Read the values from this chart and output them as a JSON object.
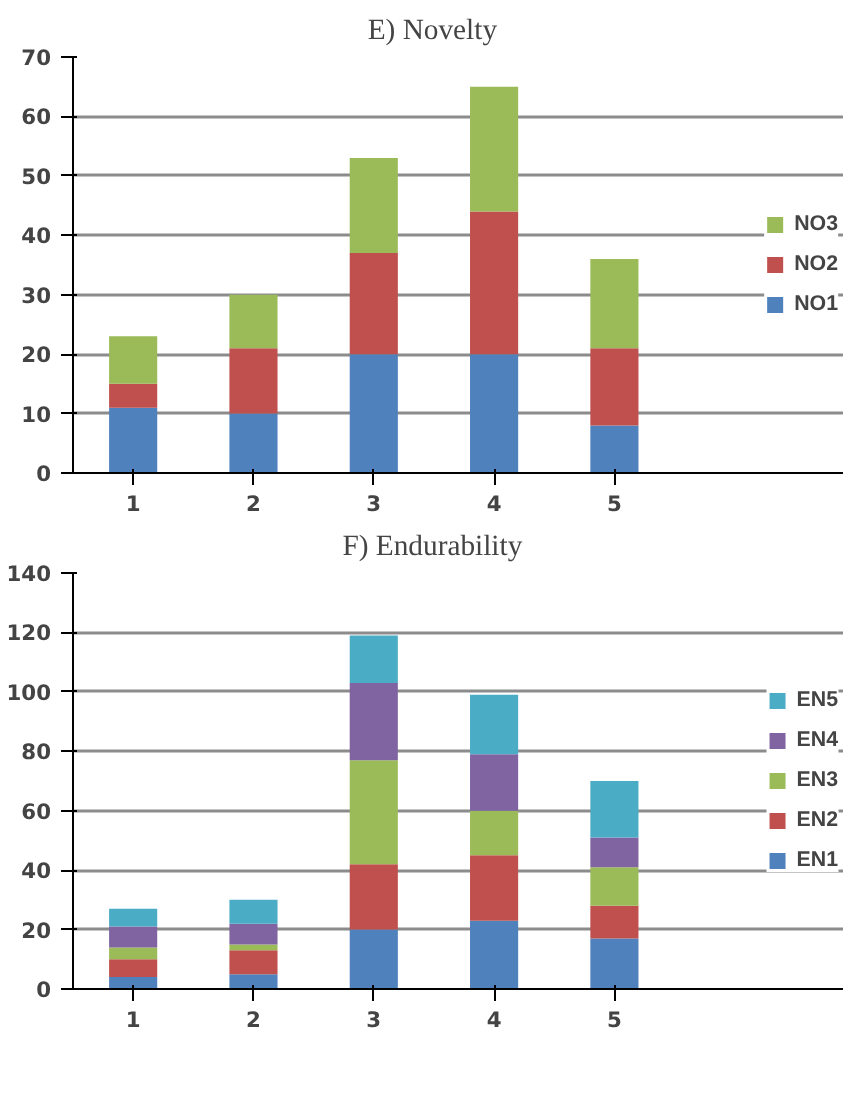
{
  "chart_data": [
    {
      "type": "bar",
      "title": "E)        Novelty",
      "categories": [
        "1",
        "2",
        "3",
        "4",
        "5"
      ],
      "stacked": true,
      "ylim": [
        0,
        70
      ],
      "yticks": [
        0,
        10,
        20,
        30,
        40,
        50,
        60,
        70
      ],
      "grid": "y",
      "legend": "right",
      "series": [
        {
          "name": "NO1",
          "color": "#4f81bd",
          "values": [
            11,
            10,
            20,
            20,
            8
          ]
        },
        {
          "name": "NO2",
          "color": "#c0504d",
          "values": [
            4,
            11,
            17,
            24,
            13
          ]
        },
        {
          "name": "NO3",
          "color": "#9bbb59",
          "values": [
            8,
            9,
            16,
            21,
            15
          ]
        }
      ]
    },
    {
      "type": "bar",
      "title": "F)        Endurability",
      "categories": [
        "1",
        "2",
        "3",
        "4",
        "5"
      ],
      "stacked": true,
      "ylim": [
        0,
        140
      ],
      "yticks": [
        0,
        20,
        40,
        60,
        80,
        100,
        120,
        140
      ],
      "grid": "y",
      "legend": "right",
      "series": [
        {
          "name": "EN1",
          "color": "#4f81bd",
          "values": [
            4,
            5,
            20,
            23,
            17
          ]
        },
        {
          "name": "EN2",
          "color": "#c0504d",
          "values": [
            6,
            8,
            22,
            22,
            11
          ]
        },
        {
          "name": "EN3",
          "color": "#9bbb59",
          "values": [
            4,
            2,
            35,
            15,
            13
          ]
        },
        {
          "name": "EN4",
          "color": "#8064a2",
          "values": [
            7,
            7,
            26,
            19,
            10
          ]
        },
        {
          "name": "EN5",
          "color": "#4bacc6",
          "values": [
            6,
            8,
            16,
            20,
            19
          ]
        }
      ]
    }
  ]
}
